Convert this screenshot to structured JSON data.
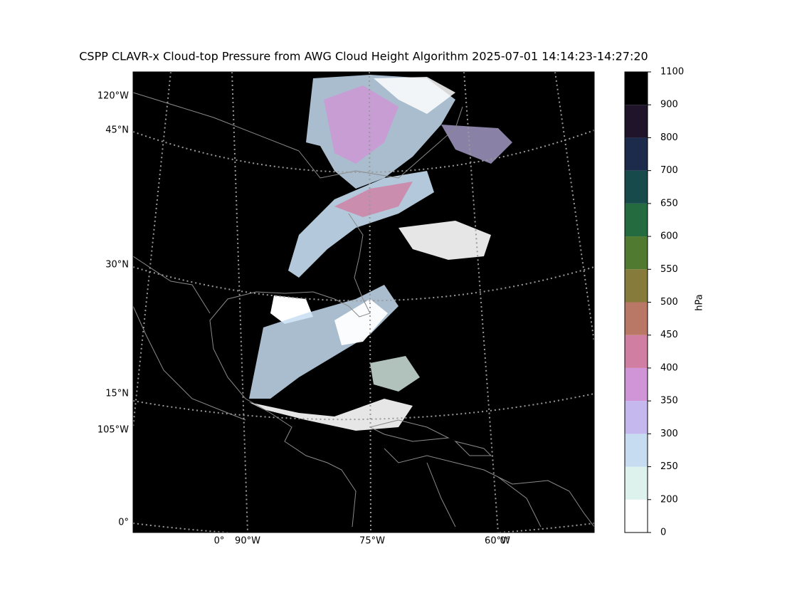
{
  "title": "CSPP CLAVR-x Cloud-top Pressure from AWG Cloud Height Algorithm 2025-07-01 14:14:23-14:27:20",
  "map": {
    "left_labels": [
      "120°W",
      "45°N",
      "30°N",
      "15°N",
      "105°W",
      "0°"
    ],
    "bottom_labels": [
      "0°",
      "90°W",
      "75°W",
      "60°W",
      "0°"
    ]
  },
  "colorbar": {
    "label": "hPa",
    "ticks": [
      0,
      200,
      250,
      300,
      350,
      400,
      450,
      500,
      550,
      600,
      650,
      700,
      800,
      900,
      1100
    ],
    "colors": [
      "#ffffff",
      "#ddf2ec",
      "#c6dcf0",
      "#c4b8ee",
      "#d095d6",
      "#d17ea3",
      "#b97866",
      "#877b3b",
      "#4f7a2f",
      "#246b3f",
      "#174b4b",
      "#1c2b4b",
      "#1f1429",
      "#000000"
    ]
  }
}
